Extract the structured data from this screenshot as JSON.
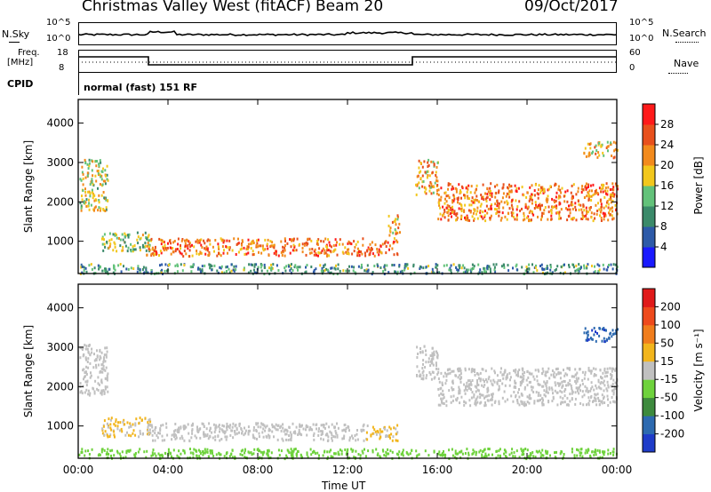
{
  "header": {
    "station": "Christmas Valley West (fitACF)",
    "beam": "Beam 20",
    "date": "09/Oct/2017"
  },
  "panels": {
    "nsky": {
      "label": "N.Sky",
      "tick_top": "10^5",
      "tick_bottom": "10^0"
    },
    "nsearch": {
      "label": "N.Search",
      "tick_top": "10^5",
      "tick_bottom": "10^0"
    },
    "freq": {
      "label_line1": "Freq.",
      "label_line2": "[MHz]",
      "tick_top": "18",
      "tick_bottom": "8"
    },
    "nave": {
      "label": "Nave",
      "tick_top": "60",
      "tick_bottom": "0"
    },
    "cpid": {
      "label": "CPID",
      "value": "normal (fast) 151 RF"
    }
  },
  "chart_data": [
    {
      "type": "heatmap",
      "title": "",
      "xlabel": "Time UT",
      "ylabel": "Slant Range [km]",
      "x_ticks": [
        "00:00",
        "04:00",
        "08:00",
        "12:00",
        "16:00",
        "20:00",
        "00:00"
      ],
      "y_ticks": [
        "1000",
        "2000",
        "3000",
        "4000"
      ],
      "xlim_hours": [
        0,
        24
      ],
      "ylim_km": [
        180,
        4600
      ],
      "colorbar": {
        "label": "Power [dB]",
        "ticks": [
          "4",
          "8",
          "12",
          "16",
          "20",
          "24",
          "28"
        ],
        "range": [
          0,
          30
        ],
        "colors": [
          "#1a1aff",
          "#2d5aa8",
          "#3b8a6a",
          "#63c27a",
          "#f2c71c",
          "#f28a1c",
          "#e8501c",
          "#ff1a1a"
        ]
      },
      "regions": [
        {
          "t0": 0.05,
          "t1": 1.3,
          "r0": 1800,
          "r1": 3100,
          "power": 16
        },
        {
          "t0": 1.0,
          "t1": 3.2,
          "r0": 750,
          "r1": 1250,
          "power": 14
        },
        {
          "t0": 3.0,
          "t1": 12.8,
          "r0": 650,
          "r1": 1100,
          "power": 22
        },
        {
          "t0": 12.8,
          "t1": 14.2,
          "r0": 650,
          "r1": 1050,
          "power": 24
        },
        {
          "t0": 13.8,
          "t1": 14.3,
          "r0": 1100,
          "r1": 1700,
          "power": 18
        },
        {
          "t0": 15.0,
          "t1": 16.0,
          "r0": 2200,
          "r1": 3100,
          "power": 20
        },
        {
          "t0": 16.0,
          "t1": 24.0,
          "r0": 1550,
          "r1": 2500,
          "power": 22
        },
        {
          "t0": 22.5,
          "t1": 24.0,
          "r0": 3150,
          "r1": 3550,
          "power": 18
        },
        {
          "t0": 0.0,
          "t1": 24.0,
          "r0": 200,
          "r1": 450,
          "power": 10
        }
      ]
    },
    {
      "type": "heatmap",
      "title": "",
      "xlabel": "Time UT",
      "ylabel": "Slant Range [km]",
      "x_ticks": [
        "00:00",
        "04:00",
        "08:00",
        "12:00",
        "16:00",
        "20:00",
        "00:00"
      ],
      "y_ticks": [
        "1000",
        "2000",
        "3000",
        "4000"
      ],
      "xlim_hours": [
        0,
        24
      ],
      "ylim_km": [
        180,
        4600
      ],
      "colorbar": {
        "label": "Velocity [m s⁻¹]",
        "ticks": [
          "200",
          "100",
          "50",
          "15",
          "-15",
          "-50",
          "-100",
          "-200"
        ],
        "range": [
          -250,
          250
        ],
        "colors": [
          "#1f3cc9",
          "#2d6ab0",
          "#3d8a3d",
          "#6ed23c",
          "#c0c0c0",
          "#f2b51c",
          "#f07d1c",
          "#ee4a1c",
          "#e01a1a"
        ]
      },
      "regions": [
        {
          "t0": 0.05,
          "t1": 1.3,
          "r0": 1800,
          "r1": 3100,
          "velocity": 0
        },
        {
          "t0": 1.0,
          "t1": 3.2,
          "r0": 750,
          "r1": 1250,
          "velocity": 30
        },
        {
          "t0": 3.0,
          "t1": 12.8,
          "r0": 650,
          "r1": 1100,
          "velocity": 0
        },
        {
          "t0": 12.8,
          "t1": 14.2,
          "r0": 650,
          "r1": 1050,
          "velocity": 30
        },
        {
          "t0": 15.0,
          "t1": 16.0,
          "r0": 2200,
          "r1": 3100,
          "velocity": 0
        },
        {
          "t0": 16.0,
          "t1": 24.0,
          "r0": 1550,
          "r1": 2500,
          "velocity": 0
        },
        {
          "t0": 22.5,
          "t1": 24.0,
          "r0": 3150,
          "r1": 3550,
          "velocity": -180
        },
        {
          "t0": 0.0,
          "t1": 24.0,
          "r0": 200,
          "r1": 450,
          "velocity": -60
        }
      ]
    }
  ]
}
